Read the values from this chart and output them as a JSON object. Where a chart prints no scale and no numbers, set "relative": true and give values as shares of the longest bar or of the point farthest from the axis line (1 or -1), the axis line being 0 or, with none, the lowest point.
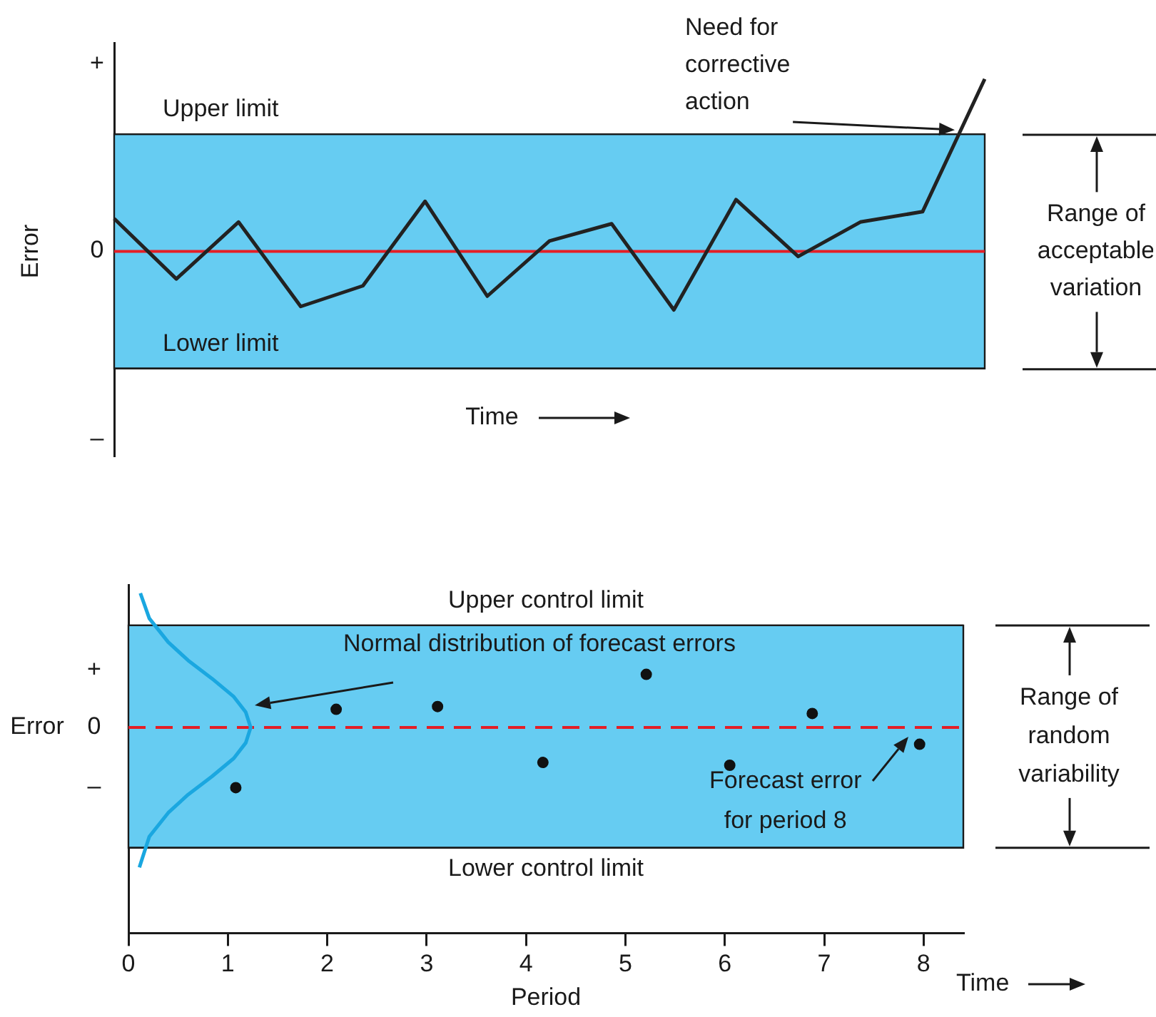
{
  "chart_data": [
    {
      "type": "line",
      "categories": [
        null,
        null,
        null,
        null,
        null,
        null,
        null,
        null,
        null,
        null,
        null,
        null,
        null,
        null,
        null
      ],
      "values": [
        0.19,
        -0.16,
        0.17,
        -0.32,
        -0.2,
        0.29,
        -0.26,
        0.06,
        0.16,
        -0.34,
        0.3,
        -0.03,
        0.17,
        0.23,
        1
      ],
      "color": "#222222",
      "marker": "none",
      "relative": true,
      "xlabel": "Time",
      "ylabel": "Error",
      "tick_labels": false,
      "bands": [
        {
          "axis": "y",
          "from": -0.68,
          "to": 0.68,
          "label": "Range of acceptable variation",
          "color": "#66ccf2"
        }
      ],
      "ref_lines": [
        {
          "axis": "y",
          "value": 0,
          "color": "#e41e26",
          "line_style": "solid"
        },
        {
          "axis": "y",
          "value": 0.68,
          "label": "Upper limit"
        },
        {
          "axis": "y",
          "value": -0.68,
          "label": "Lower limit"
        }
      ],
      "annotations": [
        "Need for corrective action",
        "+",
        "0",
        "–"
      ]
    },
    {
      "type": "scatter",
      "series": [
        {
          "x": [
            1.08,
            2.09,
            3.11,
            4.17,
            5.21,
            6.05,
            6.88,
            7.96
          ],
          "values": [
            -0.43,
            0.13,
            0.15,
            -0.25,
            0.38,
            -0.27,
            0.1,
            -0.12
          ],
          "color": "#111111"
        },
        {
          "type": "line",
          "marker": "none",
          "color": "#1aa7e0",
          "x": [
            0.12,
            0.21,
            0.4,
            0.6,
            0.84,
            1.06,
            1.18,
            1.23,
            1.18,
            1.06,
            0.84,
            0.6,
            0.4,
            0.21,
            0.11
          ],
          "values": [
            0.96,
            0.78,
            0.61,
            0.48,
            0.35,
            0.22,
            0.11,
            0,
            -0.11,
            -0.22,
            -0.35,
            -0.48,
            -0.61,
            -0.78,
            -1
          ]
        }
      ],
      "marker": "circle",
      "relative": true,
      "xlim": [
        0,
        8.4
      ],
      "xticks": [
        0,
        1,
        2,
        3,
        4,
        5,
        6,
        7,
        8
      ],
      "xlabel": "Period",
      "ylabel": "Error",
      "tick_labels": "x",
      "bands": [
        {
          "axis": "y",
          "from": -0.86,
          "to": 0.73,
          "label": "Range of random variability",
          "color": "#66ccf2"
        }
      ],
      "ref_lines": [
        {
          "axis": "y",
          "value": 0,
          "color": "#e41e26",
          "line_style": "dashed"
        },
        {
          "axis": "y",
          "value": 0.73,
          "label": "Upper control limit"
        },
        {
          "axis": "y",
          "value": -0.86,
          "label": "Lower control limit"
        }
      ],
      "annotations": [
        "Normal distribution of forecast errors",
        {
          "text": "Forecast error for period 8",
          "x": 7.96,
          "y": -0.12
        },
        "Time",
        "+",
        "0",
        "–"
      ]
    }
  ]
}
